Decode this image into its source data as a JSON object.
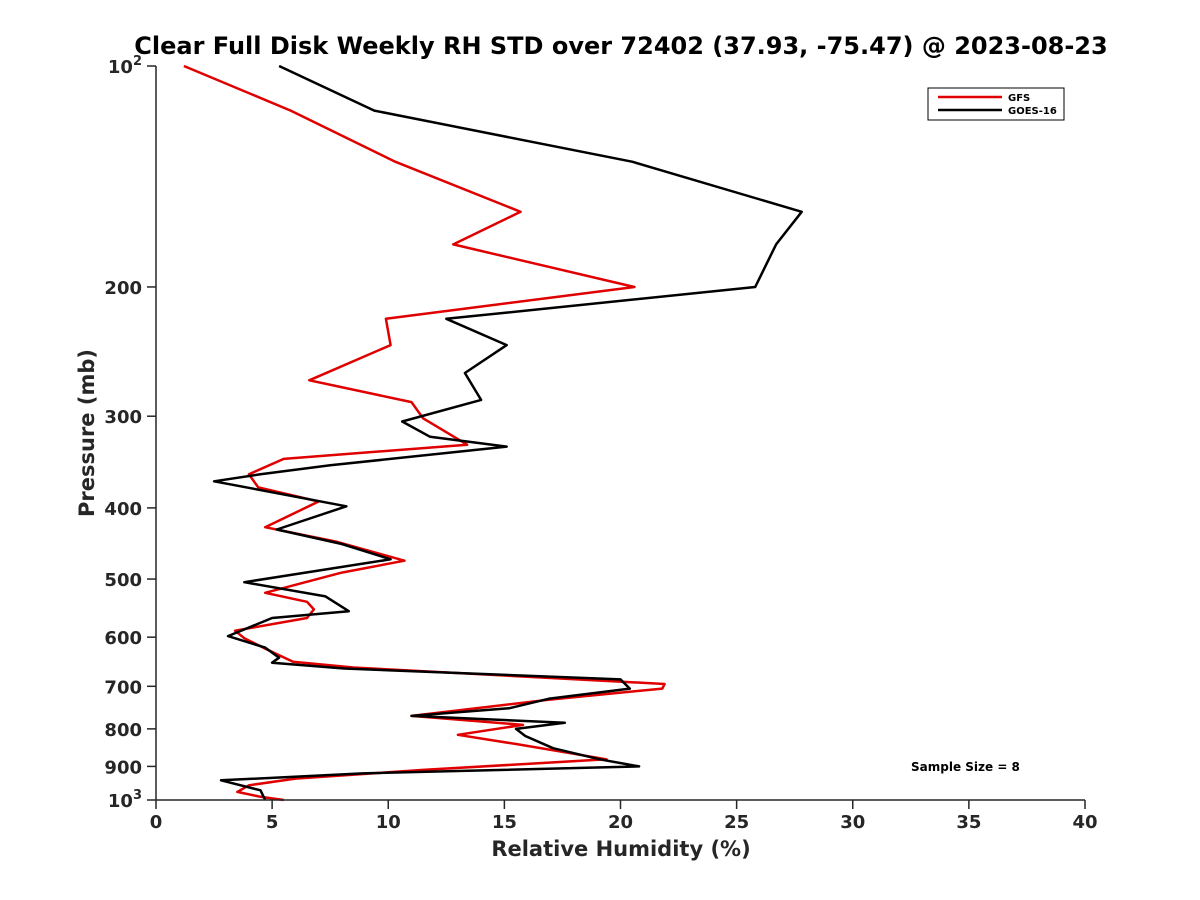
{
  "chart_data": {
    "type": "line",
    "title": "Clear Full Disk Weekly RH STD over 72402 (37.93, -75.47) @ 2023-08-23",
    "xlabel": "Relative Humidity (%)",
    "ylabel": "Pressure (mb)",
    "xlim": [
      0,
      40
    ],
    "ylim": [
      100,
      1000
    ],
    "yscale": "log",
    "yreversed": true,
    "x_ticks": [
      {
        "value": 0,
        "label": "0"
      },
      {
        "value": 5,
        "label": "5"
      },
      {
        "value": 10,
        "label": "10"
      },
      {
        "value": 15,
        "label": "15"
      },
      {
        "value": 20,
        "label": "20"
      },
      {
        "value": 25,
        "label": "25"
      },
      {
        "value": 30,
        "label": "30"
      },
      {
        "value": 35,
        "label": "35"
      },
      {
        "value": 40,
        "label": "40"
      }
    ],
    "y_ticks": [
      {
        "value": 100,
        "label": "10",
        "sup": "2"
      },
      {
        "value": 200,
        "label": "200"
      },
      {
        "value": 300,
        "label": "300"
      },
      {
        "value": 400,
        "label": "400"
      },
      {
        "value": 500,
        "label": "500"
      },
      {
        "value": 600,
        "label": "600"
      },
      {
        "value": 700,
        "label": "700"
      },
      {
        "value": 800,
        "label": "800"
      },
      {
        "value": 900,
        "label": "900"
      },
      {
        "value": 1000,
        "label": "10",
        "sup": "3"
      }
    ],
    "grid": false,
    "legend_position": "top-right",
    "annotation": "Sample Size = 8",
    "series": [
      {
        "name": "GFS",
        "color": "#e00000",
        "x": [
          1.2,
          5.8,
          10.3,
          15.7,
          12.8,
          20.6,
          9.9,
          10.1,
          6.6,
          11.0,
          11.5,
          13.4,
          5.5,
          4.0,
          4.4,
          7.0,
          4.7,
          7.8,
          10.7,
          8.0,
          4.7,
          6.5,
          6.8,
          6.5,
          3.4,
          3.8,
          4.7,
          5.9,
          8.5,
          21.9,
          21.8,
          16.9,
          11.0,
          15.8,
          13.0,
          15.6,
          19.4,
          11.5,
          6.0,
          4.0,
          3.5,
          4.5,
          5.5
        ],
        "y": [
          100,
          115,
          135,
          158,
          175,
          200,
          221,
          240,
          268,
          287,
          302,
          328,
          343,
          360,
          375,
          392,
          425,
          445,
          472,
          490,
          522,
          537,
          550,
          565,
          588,
          602,
          622,
          648,
          660,
          695,
          705,
          730,
          768,
          790,
          815,
          840,
          880,
          910,
          935,
          955,
          975,
          990,
          1000
        ]
      },
      {
        "name": "GOES-16",
        "color": "#000000",
        "x": [
          5.3,
          9.4,
          20.5,
          27.8,
          26.7,
          25.8,
          12.5,
          15.1,
          13.3,
          14.0,
          10.6,
          11.8,
          15.1,
          7.5,
          4.5,
          2.5,
          8.2,
          5.2,
          8.0,
          10.1,
          3.8,
          7.3,
          8.3,
          5.0,
          3.1,
          4.7,
          5.3,
          5.0,
          8.1,
          20.0,
          20.4,
          16.9,
          15.2,
          11.0,
          17.6,
          15.5,
          15.9,
          17.1,
          19.1,
          20.8,
          8.9,
          2.8,
          4.5,
          4.7
        ],
        "y": [
          100,
          115,
          135,
          158,
          175,
          200,
          221,
          240,
          262,
          285,
          305,
          320,
          330,
          350,
          360,
          368,
          398,
          428,
          448,
          470,
          505,
          528,
          553,
          565,
          598,
          620,
          640,
          650,
          662,
          685,
          705,
          728,
          750,
          768,
          785,
          800,
          818,
          850,
          880,
          900,
          920,
          940,
          970,
          1000
        ]
      }
    ]
  }
}
